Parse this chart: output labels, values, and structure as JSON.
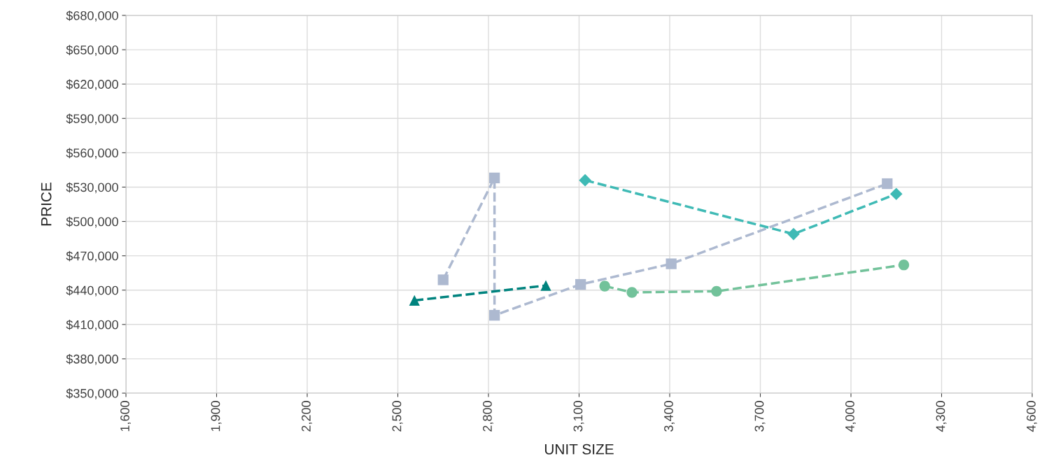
{
  "chart_data": {
    "type": "line",
    "xlabel": "UNIT SIZE",
    "ylabel": "PRICE",
    "xlim": [
      1600,
      4600
    ],
    "xticks": [
      {
        "value": 1600,
        "label": "1,600"
      },
      {
        "value": 1900,
        "label": "1,900"
      },
      {
        "value": 2200,
        "label": "2,200"
      },
      {
        "value": 2500,
        "label": "2,500"
      },
      {
        "value": 2800,
        "label": "2,800"
      },
      {
        "value": 3100,
        "label": "3,100"
      },
      {
        "value": 3400,
        "label": "3,400"
      },
      {
        "value": 3700,
        "label": "3,700"
      },
      {
        "value": 4000,
        "label": "4,000"
      },
      {
        "value": 4300,
        "label": "4,300"
      },
      {
        "value": 4600,
        "label": "4,600"
      }
    ],
    "ylim": [
      350000,
      680000
    ],
    "yticks": [
      {
        "value": 350000,
        "label": "$350,000"
      },
      {
        "value": 380000,
        "label": "$380,000"
      },
      {
        "value": 410000,
        "label": "$410,000"
      },
      {
        "value": 440000,
        "label": "$440,000"
      },
      {
        "value": 470000,
        "label": "$470,000"
      },
      {
        "value": 500000,
        "label": "$500,000"
      },
      {
        "value": 530000,
        "label": "$530,000"
      },
      {
        "value": 560000,
        "label": "$560,000"
      },
      {
        "value": 590000,
        "label": "$590,000"
      },
      {
        "value": 620000,
        "label": "$620,000"
      },
      {
        "value": 650000,
        "label": "$650,000"
      },
      {
        "value": 680000,
        "label": "$680,000"
      }
    ],
    "grid": true,
    "line_style": "dashed",
    "series": [
      {
        "color": "#adb9d0",
        "marker": "square",
        "x": [
          2650,
          2820,
          2820,
          3105,
          3405,
          4120
        ],
        "values": [
          449000,
          538000,
          418000,
          445000,
          463000,
          533000
        ]
      },
      {
        "color": "#3fbab5",
        "marker": "diamond",
        "x": [
          3120,
          3810,
          4150
        ],
        "values": [
          536000,
          489000,
          524000
        ]
      },
      {
        "color": "#00837e",
        "marker": "triangle",
        "x": [
          2555,
          2990
        ],
        "values": [
          431000,
          444000
        ]
      },
      {
        "color": "#72c29a",
        "marker": "circle",
        "x": [
          3185,
          3275,
          3555,
          4175
        ],
        "values": [
          443500,
          438000,
          439000,
          462000
        ]
      }
    ]
  }
}
